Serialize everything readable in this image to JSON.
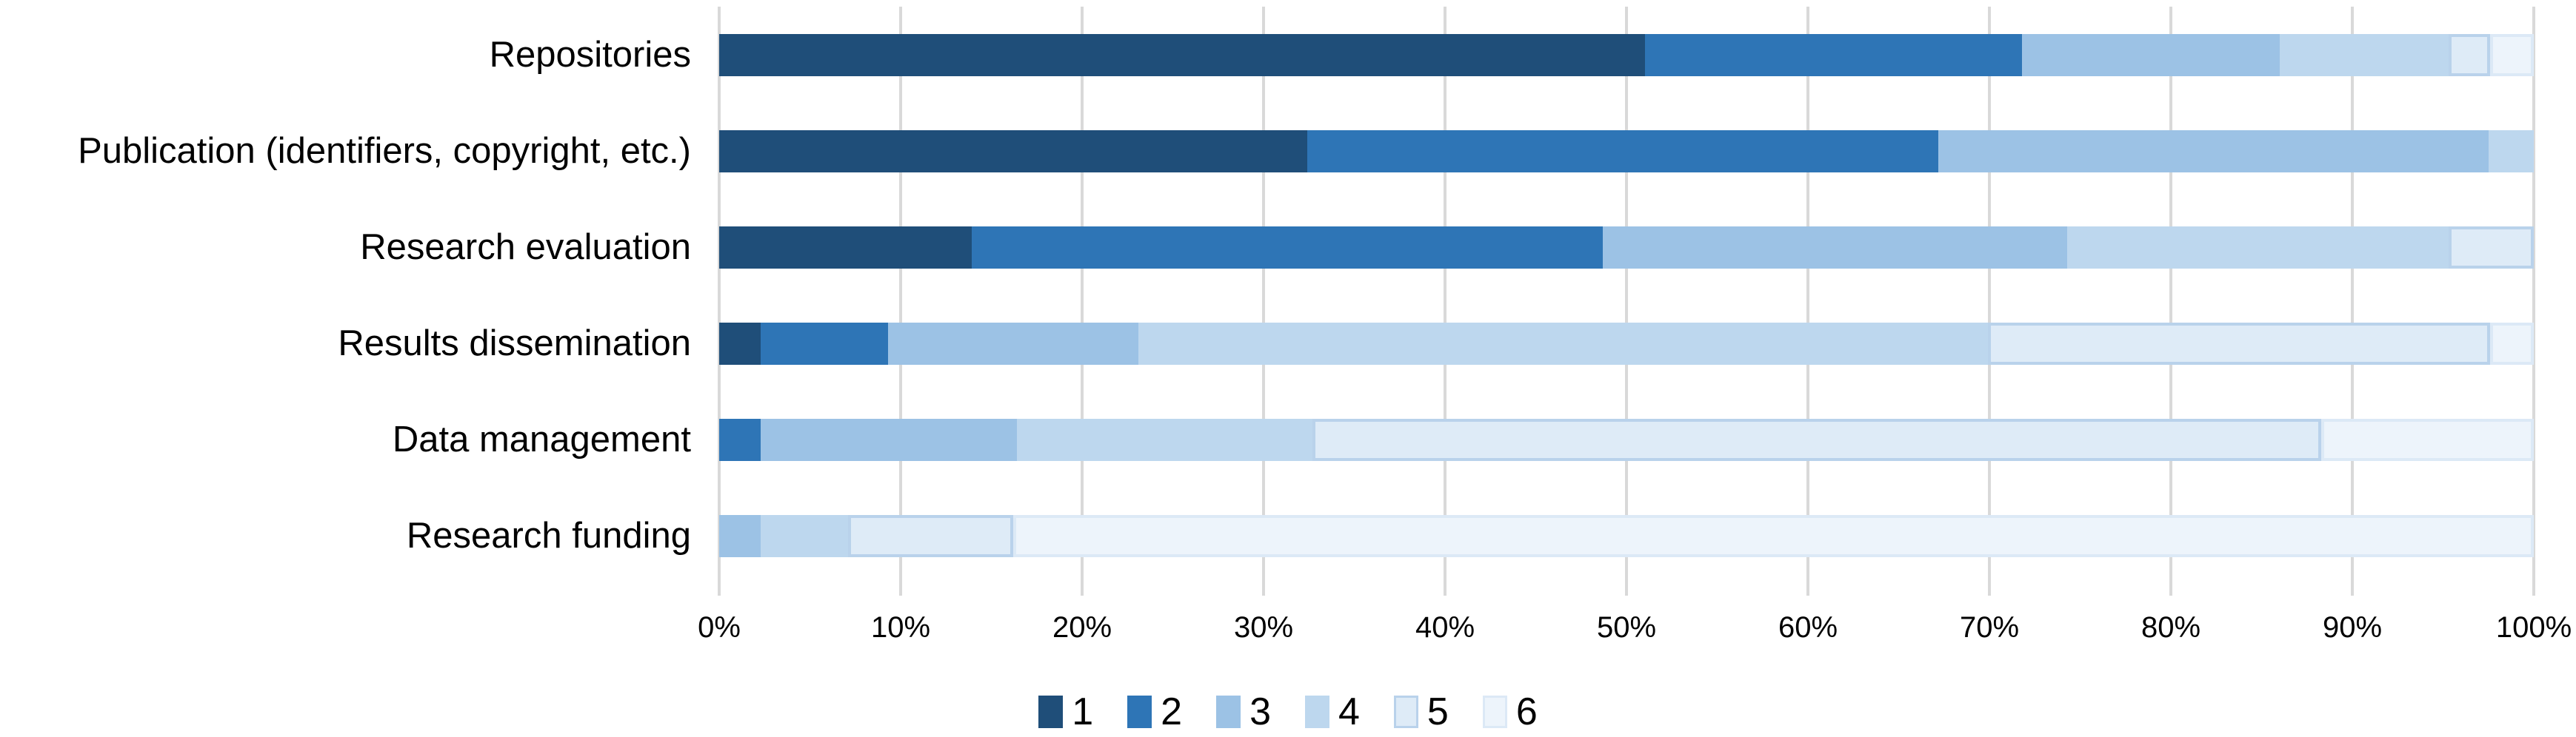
{
  "chart_data": {
    "type": "bar",
    "orientation": "horizontal",
    "stacked": true,
    "stacked_total": 100,
    "title": "",
    "xlabel": "",
    "ylabel": "",
    "xlim": [
      0,
      100
    ],
    "grid": true,
    "legend_position": "bottom",
    "categories": [
      "Repositories",
      "Publication (identifiers, copyright, etc.)",
      "Research evaluation",
      "Results dissemination",
      "Data management",
      "Research funding"
    ],
    "series": [
      {
        "name": "1",
        "color": "#1F4E79",
        "border": "",
        "values": [
          51.0,
          32.4,
          13.9,
          2.3,
          0,
          0
        ]
      },
      {
        "name": "2",
        "color": "#2E75B6",
        "border": "",
        "values": [
          20.8,
          34.8,
          34.8,
          7.0,
          2.3,
          0
        ]
      },
      {
        "name": "3",
        "color": "#9CC2E5",
        "border": "",
        "values": [
          14.2,
          30.3,
          25.6,
          13.8,
          14.1,
          2.3
        ]
      },
      {
        "name": "4",
        "color": "#BDD7EE",
        "border": "",
        "values": [
          9.3,
          2.5,
          21.0,
          46.8,
          16.3,
          4.8
        ]
      },
      {
        "name": "5",
        "color": "#DEEBF7",
        "border": "#B9D2EB",
        "values": [
          2.3,
          0,
          4.7,
          27.7,
          55.6,
          9.1
        ]
      },
      {
        "name": "6",
        "color": "#EDF4FB",
        "border": "#DCE9F6",
        "values": [
          2.4,
          0,
          0,
          2.4,
          11.7,
          83.8
        ]
      }
    ],
    "x_ticks": [
      "0%",
      "10%",
      "20%",
      "30%",
      "40%",
      "50%",
      "60%",
      "70%",
      "80%",
      "90%",
      "100%"
    ]
  },
  "style_colors": {
    "gridline": "#D9D9D9",
    "tick": "#D9D9D9",
    "background": "#FFFFFF",
    "text": "#000000"
  }
}
